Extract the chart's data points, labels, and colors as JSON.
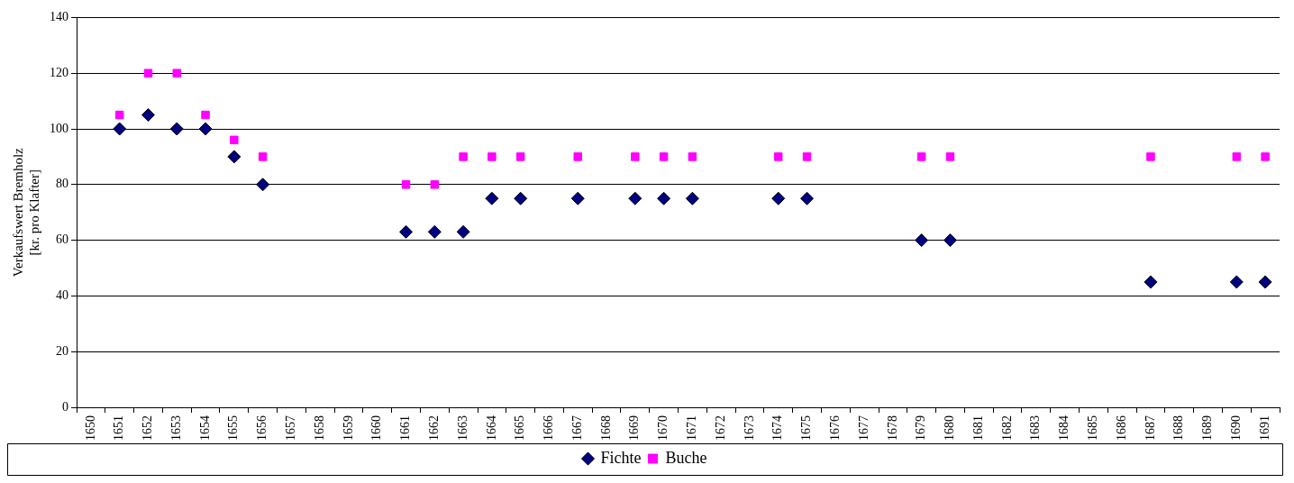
{
  "chart_data": {
    "type": "scatter",
    "ylabel": "Verkaufswert Bremholz\n[kr. pro Klafter]",
    "categories": [
      "1650",
      "1651",
      "1652",
      "1653",
      "1654",
      "1655",
      "1656",
      "1657",
      "1658",
      "1659",
      "1660",
      "1661",
      "1662",
      "1663",
      "1664",
      "1665",
      "1666",
      "1667",
      "1668",
      "1669",
      "1670",
      "1671",
      "1672",
      "1673",
      "1674",
      "1675",
      "1676",
      "1677",
      "1678",
      "1679",
      "1680",
      "1681",
      "1682",
      "1683",
      "1684",
      "1685",
      "1686",
      "1687",
      "1688",
      "1689",
      "1690",
      "1691"
    ],
    "series": [
      {
        "name": "Fichte",
        "color": "#000080",
        "marker": "diamond",
        "values": [
          null,
          100,
          105,
          100,
          100,
          90,
          80,
          null,
          null,
          null,
          null,
          63,
          63,
          63,
          75,
          75,
          null,
          75,
          null,
          75,
          75,
          75,
          null,
          null,
          75,
          75,
          null,
          null,
          null,
          60,
          60,
          null,
          null,
          null,
          null,
          null,
          null,
          45,
          null,
          null,
          45,
          45
        ]
      },
      {
        "name": "Buche",
        "color": "#ff00ff",
        "marker": "square",
        "values": [
          null,
          105,
          120,
          120,
          105,
          96,
          90,
          null,
          null,
          null,
          null,
          80,
          80,
          90,
          90,
          90,
          null,
          90,
          null,
          90,
          90,
          90,
          null,
          null,
          90,
          90,
          null,
          null,
          null,
          90,
          90,
          null,
          null,
          null,
          null,
          null,
          null,
          90,
          null,
          null,
          90,
          90
        ]
      }
    ],
    "ylim": [
      0,
      140
    ],
    "yticks": [
      0,
      20,
      40,
      60,
      80,
      100,
      120,
      140
    ],
    "grid": "y",
    "legend": "bottom"
  }
}
